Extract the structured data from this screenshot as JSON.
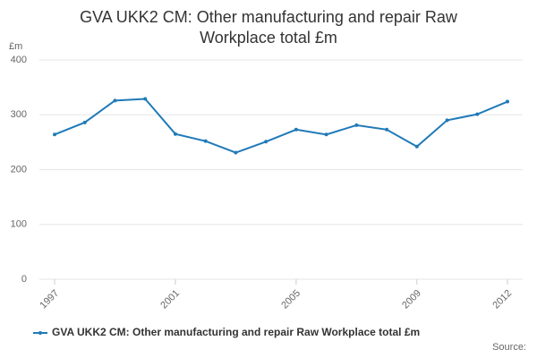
{
  "chart_data": {
    "type": "line",
    "title": "GVA UKK2 CM: Other manufacturing and repair Raw Workplace total £m",
    "y_label": "£m",
    "source": "Source:",
    "x": [
      1997,
      1998,
      1999,
      2000,
      2001,
      2002,
      2003,
      2004,
      2005,
      2006,
      2007,
      2008,
      2009,
      2010,
      2011,
      2012
    ],
    "series": [
      {
        "name": "GVA UKK2 CM: Other manufacturing and repair Raw Workplace total £m",
        "color": "#1f7ab8",
        "values": [
          264,
          286,
          326,
          329,
          265,
          252,
          231,
          251,
          273,
          264,
          281,
          273,
          242,
          290,
          301,
          324
        ]
      }
    ],
    "xlim": [
      1997,
      2012
    ],
    "xticks": [
      1997,
      2001,
      2005,
      2009,
      2012
    ],
    "ylim": [
      0,
      400
    ],
    "yticks": [
      0,
      100,
      200,
      300,
      400
    ],
    "grid": true
  }
}
